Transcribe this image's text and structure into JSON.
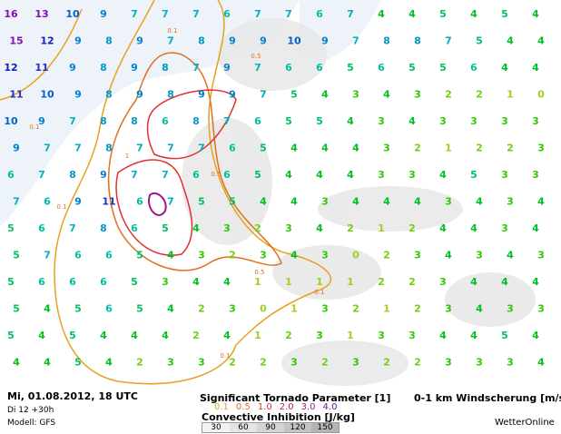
{
  "map": {
    "grid": [
      [
        16,
        13,
        10,
        9,
        7,
        7,
        7,
        6,
        7,
        7,
        6,
        7,
        4,
        4,
        5,
        4,
        5,
        4
      ],
      [
        15,
        12,
        9,
        8,
        9,
        7,
        8,
        9,
        9,
        10,
        9,
        7,
        8,
        8,
        7,
        5,
        4,
        4
      ],
      [
        12,
        11,
        9,
        8,
        9,
        8,
        7,
        9,
        7,
        6,
        6,
        5,
        6,
        5,
        5,
        6,
        4,
        4
      ],
      [
        11,
        10,
        9,
        8,
        9,
        8,
        9,
        9,
        7,
        5,
        4,
        3,
        4,
        3,
        2,
        2,
        1,
        0
      ],
      [
        10,
        9,
        7,
        8,
        8,
        6,
        8,
        7,
        6,
        5,
        5,
        4,
        3,
        4,
        3,
        3,
        3,
        3
      ],
      [
        9,
        7,
        7,
        8,
        7,
        7,
        7,
        6,
        5,
        4,
        4,
        4,
        3,
        2,
        1,
        2,
        2,
        3
      ],
      [
        6,
        7,
        8,
        9,
        7,
        7,
        6,
        6,
        5,
        4,
        4,
        4,
        3,
        3,
        4,
        5,
        3,
        3
      ],
      [
        7,
        6,
        9,
        11,
        6,
        7,
        5,
        5,
        4,
        4,
        3,
        4,
        4,
        4,
        3,
        4,
        3,
        4
      ],
      [
        5,
        6,
        7,
        8,
        6,
        5,
        4,
        3,
        2,
        3,
        4,
        2,
        1,
        2,
        4,
        4,
        3,
        4
      ],
      [
        5,
        7,
        6,
        6,
        5,
        4,
        3,
        2,
        3,
        4,
        3,
        0,
        2,
        3,
        4,
        3,
        4,
        3
      ],
      [
        5,
        6,
        6,
        6,
        5,
        3,
        4,
        4,
        1,
        1,
        1,
        1,
        2,
        2,
        3,
        4,
        4,
        4
      ],
      [
        5,
        4,
        5,
        6,
        5,
        4,
        2,
        3,
        0,
        1,
        3,
        2,
        1,
        2,
        3,
        4,
        3,
        3
      ],
      [
        5,
        4,
        5,
        4,
        4,
        4,
        2,
        4,
        1,
        2,
        3,
        1,
        3,
        3,
        4,
        4,
        5,
        4
      ],
      [
        4,
        4,
        5,
        4,
        2,
        3,
        3,
        2,
        2,
        3,
        2,
        3,
        2,
        2,
        3,
        3,
        3,
        4
      ]
    ],
    "contour_labels": [
      "0.1",
      "0.5",
      "1",
      "0.5",
      "0.1",
      "0.1",
      "0.5",
      "0.1",
      "0.1"
    ]
  },
  "footer": {
    "date": "Mi, 01.08.2012, 18 UTC",
    "run": "Di 12 +30h",
    "model": "Modell: GFS",
    "stp_title": "Significant Tornado Parameter [1]",
    "stp_legend": [
      {
        "label": "0.1",
        "color": "#e8a020"
      },
      {
        "label": "0.5",
        "color": "#e07020"
      },
      {
        "label": "1.0",
        "color": "#e03030"
      },
      {
        "label": "2.0",
        "color": "#c02060"
      },
      {
        "label": "3.0",
        "color": "#a01890"
      },
      {
        "label": "4.0",
        "color": "#7010b0"
      }
    ],
    "cin_title": "Convective Inhibition [J/kg]",
    "cin_legend": [
      {
        "label": "30",
        "color": "#f2f2f2"
      },
      {
        "label": "60",
        "color": "#e4e4e4"
      },
      {
        "label": "90",
        "color": "#d4d4d4"
      },
      {
        "label": "120",
        "color": "#c4c4c4"
      },
      {
        "label": "150",
        "color": "#b4b4b4"
      }
    ],
    "shear_title": "0-1 km Windscherung [m/s]",
    "brand": "WetterOnline"
  }
}
